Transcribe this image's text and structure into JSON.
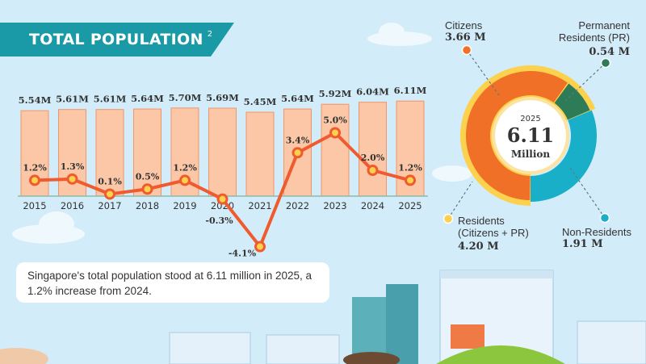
{
  "title": "TOTAL POPULATION",
  "title_footnote": "2",
  "summary": "Singapore's total population stood at 6.11 million in 2025, a 1.2% increase from 2024.",
  "colors": {
    "background": "#d3ecf9",
    "banner": "#1a9aa6",
    "bar": "#fbc7a6",
    "line": "#ef5a2f",
    "citizens": "#f07027",
    "pr": "#2e7b57",
    "non_residents": "#1aafc9",
    "residents": "#fcd14d"
  },
  "chart_data": [
    {
      "type": "bar+line",
      "categories": [
        "2015",
        "2016",
        "2017",
        "2018",
        "2019",
        "2020",
        "2021",
        "2022",
        "2023",
        "2024",
        "2025"
      ],
      "series": [
        {
          "type": "bar",
          "values": [
            5.54,
            5.61,
            5.61,
            5.64,
            5.7,
            5.69,
            5.45,
            5.64,
            5.92,
            6.04,
            6.11
          ],
          "labels": [
            "5.54M",
            "5.61M",
            "5.61M",
            "5.64M",
            "5.70M",
            "5.69M",
            "5.45M",
            "5.64M",
            "5.92M",
            "6.04M",
            "6.11M"
          ]
        },
        {
          "type": "line",
          "values": [
            1.2,
            1.3,
            0.1,
            0.5,
            1.2,
            -0.3,
            -4.1,
            3.4,
            5.0,
            2.0,
            1.2
          ],
          "labels": [
            "1.2%",
            "1.3%",
            "0.1%",
            "0.5%",
            "1.2%",
            "-0.3%",
            "-4.1%",
            "3.4%",
            "5.0%",
            "2.0%",
            "1.2%"
          ]
        }
      ]
    },
    {
      "type": "pie",
      "center_year": "2025",
      "center_value": "6.11",
      "center_unit": "Million",
      "slices": [
        {
          "name": "Citizens",
          "value": 3.66,
          "label": "3.66 M"
        },
        {
          "name": "Permanent Residents (PR)",
          "value": 0.54,
          "label": "0.54 M"
        },
        {
          "name": "Non-Residents",
          "value": 1.91,
          "label": "1.91 M"
        }
      ],
      "group": {
        "name": "Residents (Citizens + PR)",
        "value": 4.2,
        "label": "4.20 M"
      }
    }
  ]
}
